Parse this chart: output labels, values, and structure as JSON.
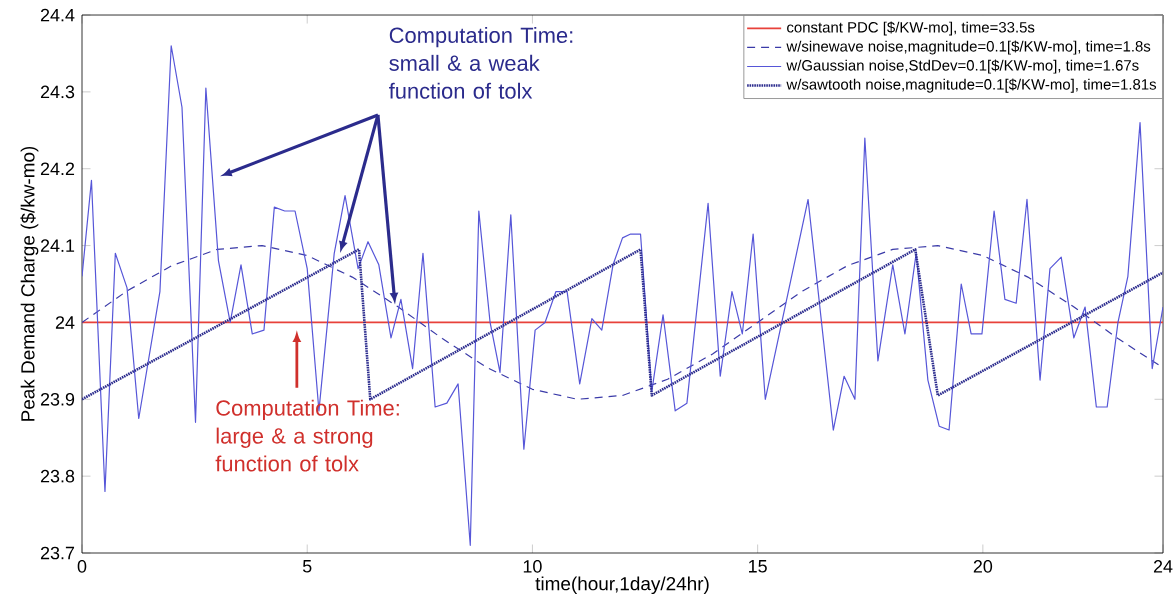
{
  "chart_data": {
    "type": "line",
    "xlabel": "time(hour,1day/24hr)",
    "ylabel": "Peak Demand Charge ($/kw-mo)",
    "xlim": [
      0,
      24
    ],
    "xticks": [
      0,
      5,
      10,
      15,
      20,
      24
    ],
    "ylim": [
      23.7,
      24.4
    ],
    "yticks": [
      23.7,
      23.8,
      23.9,
      24,
      24.1,
      24.2,
      24.3,
      24.4
    ],
    "grid": false,
    "legend": "top right",
    "marker": "none",
    "series": [
      {
        "name": "constant PDC [$/KW-mo],                                    time=33.5s",
        "color": "#e8413a",
        "line_style": "solid",
        "x": [
          0,
          24
        ],
        "values": [
          24,
          24
        ]
      },
      {
        "name": "w/sinewave noise,magnitude=0.1[$/KW-mo], time=1.8s",
        "color": "#3a3aa8",
        "line_style": "dashed",
        "x": [
          0,
          1,
          2,
          3,
          4,
          5,
          6,
          7,
          8,
          9,
          10,
          11,
          12,
          13,
          14,
          15,
          16,
          17,
          18,
          19,
          20,
          21,
          22,
          23,
          24
        ],
        "values": [
          24.0,
          24.041,
          24.074,
          24.095,
          24.1,
          24.087,
          24.059,
          24.021,
          23.979,
          23.941,
          23.913,
          23.9,
          23.905,
          23.926,
          23.959,
          24.0,
          24.041,
          24.074,
          24.095,
          24.1,
          24.087,
          24.059,
          24.021,
          23.979,
          23.941
        ]
      },
      {
        "name": "w/Gaussian noise,StdDev=0.1[$/KW-mo],       time=1.67s",
        "color": "#5656d8",
        "line_style": "solid",
        "x": [
          0,
          0.21,
          0.51,
          0.74,
          1.0,
          1.26,
          1.73,
          1.98,
          2.22,
          2.52,
          2.75,
          3.03,
          3.29,
          3.53,
          3.78,
          4.04,
          4.27,
          4.5,
          4.73,
          5.0,
          5.26,
          5.6,
          5.84,
          6.13,
          6.35,
          6.59,
          6.86,
          7.08,
          7.34,
          7.57,
          7.84,
          8.1,
          8.35,
          8.62,
          8.81,
          9.06,
          9.28,
          9.52,
          9.81,
          10.06,
          10.28,
          10.52,
          10.77,
          11.05,
          11.32,
          11.54,
          11.79,
          12.0,
          12.18,
          12.4,
          12.65,
          12.9,
          13.17,
          13.43,
          13.9,
          14.17,
          14.43,
          14.66,
          14.9,
          15.17,
          16.12,
          16.68,
          16.92,
          17.16,
          17.38,
          17.67,
          18.0,
          18.27,
          18.52,
          18.78,
          19.03,
          19.25,
          19.52,
          19.74,
          19.98,
          20.25,
          20.49,
          20.74,
          20.98,
          21.27,
          21.49,
          21.74,
          22.02,
          22.27,
          22.52,
          22.76,
          23.0,
          23.22,
          23.49,
          23.76,
          24.0
        ],
        "values": [
          24.06,
          24.185,
          23.78,
          24.09,
          24.045,
          23.875,
          24.04,
          24.36,
          24.28,
          23.87,
          24.305,
          24.08,
          24.0,
          24.075,
          23.985,
          23.99,
          24.15,
          24.145,
          24.145,
          24.07,
          23.885,
          24.09,
          24.165,
          24.07,
          24.105,
          24.075,
          23.98,
          24.03,
          23.94,
          24.09,
          23.89,
          23.895,
          23.92,
          23.71,
          24.145,
          24.0,
          23.935,
          24.14,
          23.835,
          23.99,
          24.0,
          24.04,
          24.04,
          23.92,
          24.005,
          23.99,
          24.075,
          24.11,
          24.115,
          24.115,
          23.91,
          24.01,
          23.885,
          23.895,
          24.155,
          23.93,
          24.04,
          23.985,
          24.115,
          23.9,
          24.16,
          23.86,
          23.93,
          23.9,
          24.24,
          23.95,
          24.075,
          23.985,
          24.09,
          23.925,
          23.865,
          23.86,
          24.05,
          23.985,
          23.985,
          24.145,
          24.03,
          24.025,
          24.16,
          23.925,
          24.07,
          24.085,
          23.98,
          24.02,
          23.89,
          23.89,
          24.0,
          24.06,
          24.26,
          23.94,
          24.02
        ]
      },
      {
        "name": "w/sawtooth noise,magnitude=0.1[$/KW-mo], time=1.81s",
        "color": "#2c2c8e",
        "line_style": "dotted",
        "x": [
          0,
          6.15,
          6.4,
          12.4,
          12.65,
          18.5,
          19.0,
          24
        ],
        "values": [
          23.9,
          24.095,
          23.9,
          24.095,
          23.905,
          24.095,
          23.905,
          24.065
        ]
      }
    ],
    "annotations": [
      "Computation Time: small & a weak function of tolx",
      "Computation Time: large & a strong function of tolx"
    ]
  }
}
